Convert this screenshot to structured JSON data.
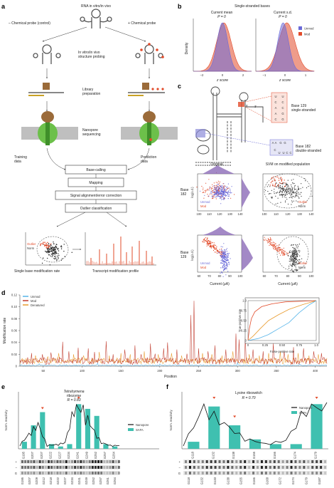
{
  "panels": {
    "a": {
      "label": "a",
      "top_title": "RNA in vitro/in vivo",
      "left_title": "– Chemical probe\n(control)",
      "right_title": "+ Chemical probe",
      "step_probing": "In vitro/in vivo\nstructure probing",
      "step_library": "Library\npreparation",
      "step_nanopore": "Nanopore\nsequencing",
      "training": "Training\ndata",
      "prediction": "Prediction\ndata",
      "pipeline": [
        "Base-calling",
        "Mapping",
        "Signal alignment/error correction",
        "Outlier classification"
      ],
      "out_left": "Single base modification rate",
      "out_right": "Transcript modification profile",
      "legend_outlier": "Outlier",
      "legend_norm": "Norm"
    },
    "b": {
      "label": "b",
      "title": "Single-stranded bases",
      "left_title": "Current mean",
      "right_title": "Current s.d.",
      "p_left": "P = 0",
      "p_right": "P = 0",
      "ylabel": "Density",
      "xlabel": "z score",
      "legend": [
        "Unmod",
        "Mod"
      ],
      "left_ticks": [
        "–2",
        "0",
        "2"
      ],
      "right_ticks": [
        "–1",
        "0",
        "1"
      ]
    },
    "c": {
      "label": "c",
      "base129": "Base 129\nsingle-stranded",
      "base182": "Base 182\ndouble-stranded",
      "col_original": "Original",
      "col_svm": "SVM on modified population",
      "row182": "Base\n182",
      "row129": "Base\n129",
      "ylabel": "log(s.d.)",
      "xlabel": "Current (μA)",
      "unmod": "Unmod",
      "mod": "Mod",
      "outlier": "Outlier",
      "norm": "Norm",
      "xticks_top": [
        "100",
        "110",
        "120",
        "130",
        "140"
      ],
      "xticks_bottom": [
        "60",
        "70",
        "80",
        "90",
        "100"
      ],
      "seq129": [
        "U",
        "C",
        "A",
        "A",
        "C",
        "U",
        "C",
        "C",
        "G",
        "G"
      ],
      "seq182": [
        "A",
        "A",
        "G",
        "G",
        "C",
        "U",
        "U",
        "C",
        "C"
      ],
      "five_prime": "5′",
      "three_prime": "3′"
    },
    "d": {
      "label": "d",
      "ylabel": "Modification rate",
      "xlabel": "Position",
      "legend": [
        "Unmod",
        "Mod",
        "Denatured"
      ],
      "yticks": [
        "0",
        "0.02",
        "0.04",
        "0.06",
        "0.08",
        "0.10",
        "0.12"
      ],
      "xticks": [
        "50",
        "100",
        "150",
        "200",
        "250",
        "300",
        "350",
        "400"
      ],
      "inset_ylabel": "True-positive rate",
      "inset_xlabel": "False-positive rate",
      "inset_ticks": [
        "0",
        "0.25",
        "0.50",
        "0.75",
        "1.0"
      ]
    },
    "e": {
      "label": "e",
      "title": "Tetrahymena\nribozyme",
      "r": "R = 0.83",
      "ylabel": "Norm. reactivity",
      "legend": [
        "Nanopore",
        "SAFA"
      ],
      "xlabels": [
        "G195",
        "G207",
        "G207",
        "G222",
        "G227",
        "G234",
        "G241",
        "G249",
        "G252",
        "G257",
        "G264"
      ],
      "gel_labels": [
        "G195",
        "G207",
        "G209",
        "G212",
        "G218",
        "G222",
        "G227",
        "G234",
        "G241",
        "G249",
        "G252",
        "G257",
        "G261",
        "G264"
      ],
      "lanes": [
        "+",
        "–",
        "G"
      ]
    },
    "f": {
      "label": "f",
      "title": "Lysine riboswitch",
      "r": "R = 0.70",
      "ylabel": "Norm. reactivity",
      "legend": [
        "Nanopore",
        "SAFA"
      ],
      "xlabels": [
        "G118",
        "G132",
        "G138",
        "G155",
        "G166",
        "G174",
        "G179"
      ],
      "gel_labels": [
        "G118",
        "G132",
        "G133",
        "G138",
        "G155",
        "G166",
        "G168",
        "G172",
        "G174",
        "G179",
        "G187"
      ],
      "lanes": [
        "+",
        "–",
        "G"
      ]
    }
  },
  "colors": {
    "unmod": "#6a6ad8",
    "mod": "#e24b2a",
    "denatured": "#e89a2c",
    "unmod_line": "#56b4e9",
    "safa": "#3fc0b0",
    "nanopore": "#111111",
    "green": "#6cc04a"
  },
  "chart_data": [
    {
      "type": "line",
      "panel": "d",
      "xlabel": "Position",
      "ylabel": "Modification rate",
      "xlim": [
        20,
        415
      ],
      "ylim": [
        0,
        0.12
      ],
      "series": [
        {
          "name": "Mod",
          "peaks": [
            [
              35,
              0.022
            ],
            [
              49,
              0.02
            ],
            [
              60,
              0.023
            ],
            [
              75,
              0.041
            ],
            [
              83,
              0.025
            ],
            [
              95,
              0.031
            ],
            [
              108,
              0.03
            ],
            [
              116,
              0.024
            ],
            [
              131,
              0.042
            ],
            [
              140,
              0.02
            ],
            [
              155,
              0.028
            ],
            [
              168,
              0.035
            ],
            [
              176,
              0.02
            ],
            [
              188,
              0.038
            ],
            [
              194,
              0.021
            ],
            [
              205,
              0.03
            ],
            [
              210,
              0.04
            ],
            [
              222,
              0.028
            ],
            [
              235,
              0.021
            ],
            [
              240,
              0.086
            ],
            [
              244,
              0.11
            ],
            [
              250,
              0.03
            ],
            [
              262,
              0.025
            ],
            [
              271,
              0.035
            ],
            [
              285,
              0.028
            ],
            [
              298,
              0.055
            ],
            [
              302,
              0.045
            ],
            [
              310,
              0.05
            ],
            [
              320,
              0.028
            ],
            [
              333,
              0.025
            ],
            [
              346,
              0.038
            ],
            [
              360,
              0.025
            ],
            [
              372,
              0.032
            ],
            [
              385,
              0.03
            ],
            [
              398,
              0.025
            ],
            [
              408,
              0.022
            ]
          ]
        },
        {
          "name": "Denatured",
          "peaks": [
            [
              40,
              0.018
            ],
            [
              56,
              0.016
            ],
            [
              70,
              0.022
            ],
            [
              89,
              0.02
            ],
            [
              102,
              0.018
            ],
            [
              122,
              0.024
            ],
            [
              135,
              0.018
            ],
            [
              150,
              0.022
            ],
            [
              162,
              0.02
            ],
            [
              180,
              0.025
            ],
            [
              198,
              0.02
            ],
            [
              215,
              0.022
            ],
            [
              228,
              0.018
            ],
            [
              255,
              0.022
            ],
            [
              267,
              0.02
            ],
            [
              280,
              0.018
            ],
            [
              294,
              0.025
            ],
            [
              315,
              0.02
            ],
            [
              328,
              0.018
            ],
            [
              340,
              0.022
            ],
            [
              355,
              0.025
            ],
            [
              365,
              0.02
            ],
            [
              378,
              0.022
            ],
            [
              392,
              0.018
            ],
            [
              404,
              0.02
            ]
          ]
        },
        {
          "name": "Unmod",
          "peaks": [
            [
              45,
              0.004
            ],
            [
              120,
              0.005
            ],
            [
              200,
              0.004
            ],
            [
              300,
              0.006
            ],
            [
              380,
              0.004
            ]
          ]
        }
      ]
    },
    {
      "type": "line",
      "panel": "d-inset",
      "xlabel": "False-positive rate",
      "ylabel": "True-positive rate",
      "xlim": [
        0,
        1
      ],
      "ylim": [
        0,
        1
      ],
      "series": [
        {
          "name": "Mod",
          "points": [
            [
              0,
              0
            ],
            [
              0.02,
              0.3
            ],
            [
              0.05,
              0.55
            ],
            [
              0.1,
              0.72
            ],
            [
              0.2,
              0.85
            ],
            [
              0.35,
              0.92
            ],
            [
              0.55,
              0.97
            ],
            [
              1,
              1
            ]
          ]
        },
        {
          "name": "Denatured",
          "points": [
            [
              0,
              0
            ],
            [
              0.08,
              0.12
            ],
            [
              0.18,
              0.3
            ],
            [
              0.3,
              0.5
            ],
            [
              0.45,
              0.65
            ],
            [
              0.6,
              0.78
            ],
            [
              0.8,
              0.9
            ],
            [
              1,
              1
            ]
          ]
        },
        {
          "name": "Unmod",
          "points": [
            [
              0,
              0
            ],
            [
              0.15,
              0.05
            ],
            [
              0.3,
              0.15
            ],
            [
              0.45,
              0.3
            ],
            [
              0.6,
              0.45
            ],
            [
              0.75,
              0.7
            ],
            [
              0.9,
              0.9
            ],
            [
              1,
              1
            ]
          ]
        }
      ]
    },
    {
      "type": "area",
      "panel": "b",
      "title": "Single-stranded bases",
      "xlabel": "z score",
      "ylabel": "Density",
      "series": [
        {
          "name": "Unmod",
          "panel": "Current mean",
          "mu": 0,
          "sd": 0.55
        },
        {
          "name": "Mod",
          "panel": "Current mean",
          "mu": 0.15,
          "sd": 0.75
        },
        {
          "name": "Unmod",
          "panel": "Current s.d.",
          "mu": -0.1,
          "sd": 0.3
        },
        {
          "name": "Mod",
          "panel": "Current s.d.",
          "mu": 0.1,
          "sd": 0.45
        }
      ]
    },
    {
      "type": "bar",
      "panel": "e",
      "ylabel": "Norm. reactivity",
      "series": [
        {
          "name": "SAFA",
          "values": [
            0.15,
            0.5,
            0.78,
            0.1,
            0.05,
            0.1,
            0.95,
            0.85,
            0.7,
            0.1,
            0.05
          ]
        },
        {
          "name": "Nanopore",
          "values": [
            0.1,
            0.35,
            0.6,
            0.08,
            0.1,
            0.15,
            1.0,
            0.95,
            0.5,
            0.15,
            0.08
          ]
        }
      ]
    },
    {
      "type": "bar",
      "panel": "f",
      "ylabel": "Norm. reactivity",
      "series": [
        {
          "name": "SAFA",
          "values": [
            0.15,
            0.9,
            0.5,
            0.2,
            0.1,
            0.1,
            0.95
          ]
        },
        {
          "name": "Nanopore",
          "values": [
            0.1,
            1.0,
            0.6,
            0.25,
            0.12,
            0.2,
            1.0
          ]
        }
      ]
    }
  ]
}
